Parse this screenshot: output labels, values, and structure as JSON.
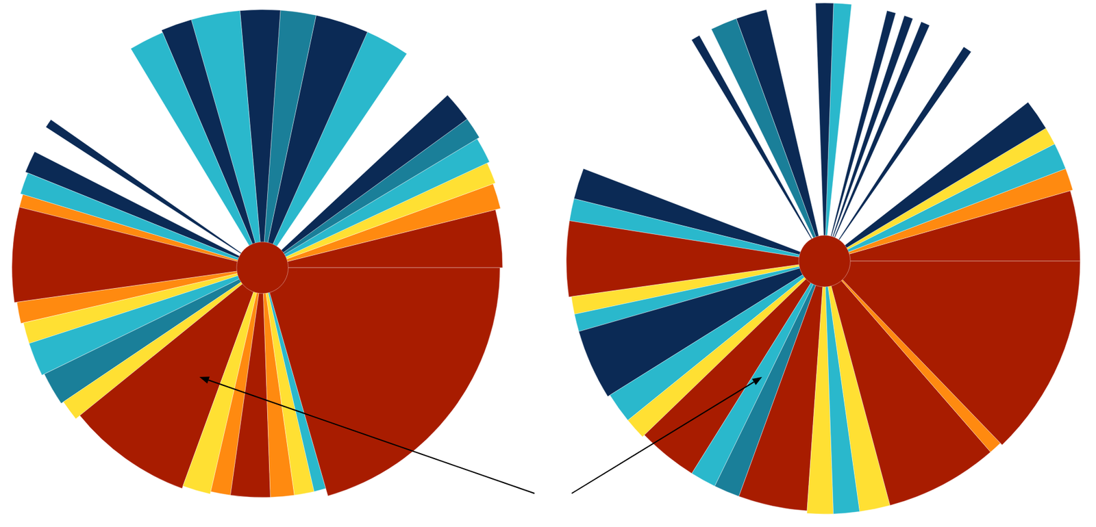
{
  "chart_data": [
    {
      "type": "polar_rays",
      "rlim": [
        0,
        1
      ],
      "tick_labels": false,
      "grid": false,
      "from": [
        0,
        14,
        20,
        25,
        31,
        36,
        56,
        66,
        78,
        86,
        95,
        106,
        113,
        145,
        153,
        158,
        163,
        166,
        188,
        193,
        198,
        206,
        214,
        219,
        250,
        257,
        262,
        272,
        278,
        283,
        286,
        0
      ],
      "to": [
        14,
        20,
        25,
        31,
        36,
        43,
        66,
        78,
        86,
        95,
        106,
        113,
        121,
        147,
        158,
        163,
        166,
        188,
        193,
        198,
        206,
        214,
        219,
        250,
        257,
        262,
        272,
        278,
        283,
        286,
        360,
        360
      ],
      "r": [
        0.93,
        0.95,
        0.96,
        0.97,
        0.98,
        0.98,
        1.0,
        1.0,
        1.0,
        1.0,
        1.0,
        1.0,
        0.99,
        1.0,
        0.99,
        0.98,
        0.97,
        0.97,
        0.96,
        0.95,
        0.95,
        0.94,
        0.93,
        0.91,
        0.9,
        0.89,
        0.89,
        0.89,
        0.89,
        0.89,
        0.92,
        0.1
      ],
      "colors": [
        "#a81c00",
        "#ff8a10",
        "#ffe033",
        "#2ab8cc",
        "#1a7f99",
        "#0b2a55",
        "#2ab8cc",
        "#0b2a55",
        "#1a7f99",
        "#0b2a55",
        "#2ab8cc",
        "#0b2a55",
        "#2ab8cc",
        "#0b2a55",
        "#0b2a55",
        "#2ab8cc",
        "#ff8a10",
        "#a81c00",
        "#ff8a10",
        "#ffe033",
        "#2ab8cc",
        "#1a7f99",
        "#ffe033",
        "#a81c00",
        "#ffe033",
        "#ff8a10",
        "#a81c00",
        "#ff8a10",
        "#ffe033",
        "#2ab8cc",
        "#a81c00",
        "#a81c00"
      ]
    },
    {
      "type": "polar_rays",
      "rlim": [
        0,
        1
      ],
      "tick_labels": false,
      "grid": false,
      "from": [
        0,
        16,
        21,
        27,
        31,
        55,
        66,
        70,
        74,
        84,
        88,
        103,
        110,
        119,
        159,
        166,
        171,
        188,
        192,
        196,
        212,
        219,
        224,
        238,
        244,
        250,
        266,
        272,
        278,
        285,
        311,
        314,
        0
      ],
      "to": [
        16,
        21,
        27,
        31,
        38,
        57,
        68,
        72,
        76,
        88,
        92,
        110,
        116,
        121,
        166,
        171,
        188,
        192,
        196,
        212,
        219,
        224,
        238,
        244,
        250,
        266,
        272,
        278,
        285,
        311,
        314,
        360,
        360
      ],
      "r": [
        0.99,
        1.0,
        1.0,
        1.0,
        1.0,
        0.99,
        1.0,
        1.0,
        1.0,
        1.0,
        1.0,
        1.0,
        1.0,
        1.0,
        1.0,
        1.0,
        1.0,
        0.99,
        0.99,
        0.99,
        0.98,
        0.98,
        0.97,
        0.97,
        0.97,
        0.97,
        0.98,
        0.98,
        0.98,
        0.98,
        0.98,
        0.99,
        0.1
      ],
      "colors": [
        "#a81c00",
        "#ff8a10",
        "#2ab8cc",
        "#ffe033",
        "#0b2a55",
        "#0b2a55",
        "#0b2a55",
        "#0b2a55",
        "#0b2a55",
        "#2ab8cc",
        "#0b2a55",
        "#0b2a55",
        "#1a7f99",
        "#0b2a55",
        "#0b2a55",
        "#2ab8cc",
        "#a81c00",
        "#ffe033",
        "#2ab8cc",
        "#0b2a55",
        "#2ab8cc",
        "#ffe033",
        "#a81c00",
        "#2ab8cc",
        "#1a7f99",
        "#a81c00",
        "#ffe033",
        "#2ab8cc",
        "#ffe033",
        "#a81c00",
        "#ff8a10",
        "#a81c00",
        "#a81c00"
      ]
    }
  ]
}
